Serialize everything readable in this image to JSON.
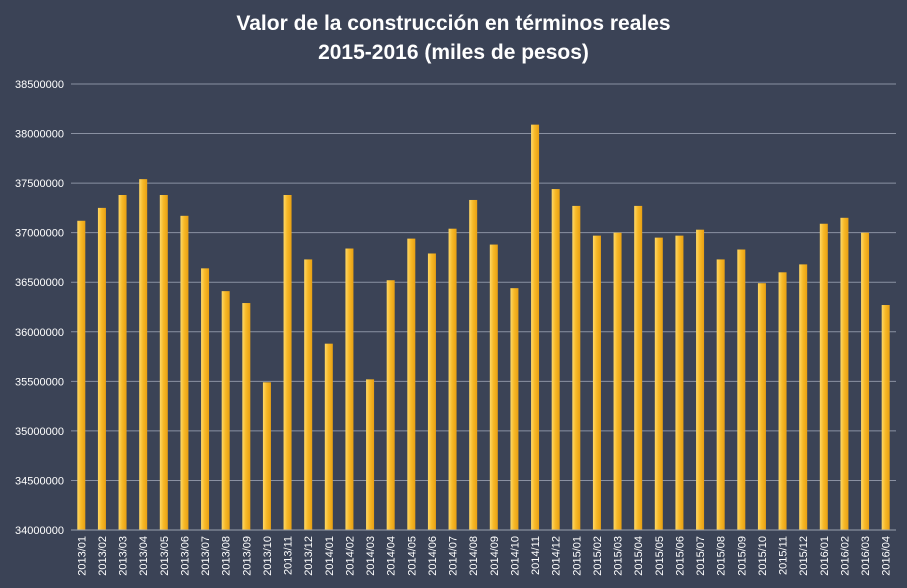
{
  "chart_data": {
    "type": "bar",
    "title": "Valor de la construcción en términos reales",
    "subtitle": "2015-2016 (miles de pesos)",
    "xlabel": "",
    "ylabel": "",
    "ylim": [
      34000000,
      38500000
    ],
    "yticks": [
      "34000000",
      "34500000",
      "35000000",
      "35500000",
      "36000000",
      "36500000",
      "37000000",
      "37500000",
      "38000000",
      "38500000"
    ],
    "grid": true,
    "legend": "none",
    "colors": {
      "background": "#3b4356",
      "bar": "#f7b928",
      "bar_highlight": "#ffd866",
      "grid": "#8a91a2",
      "text": "#ffffff"
    },
    "categories": [
      "2013/01",
      "2013/02",
      "2013/03",
      "2013/04",
      "2013/05",
      "2013/06",
      "2013/07",
      "2013/08",
      "2013/09",
      "2013/10",
      "2013/11",
      "2013/12",
      "2014/01",
      "2014/02",
      "2014/03",
      "2014/04",
      "2014/05",
      "2014/06",
      "2014/07",
      "2014/08",
      "2014/09",
      "2014/10",
      "2014/11",
      "2014/12",
      "2015/01",
      "2015/02",
      "2015/03",
      "2015/04",
      "2015/05",
      "2015/06",
      "2015/07",
      "2015/08",
      "2015/09",
      "2015/10",
      "2015/11",
      "2015/12",
      "2016/01",
      "2016/02",
      "2016/03",
      "2016/04"
    ],
    "values": [
      37120000,
      37250000,
      37380000,
      37540000,
      37380000,
      37170000,
      36640000,
      36410000,
      36290000,
      35490000,
      37380000,
      36730000,
      35880000,
      36840000,
      35520000,
      36520000,
      36940000,
      36790000,
      37040000,
      37330000,
      36880000,
      36440000,
      38090000,
      37440000,
      37270000,
      36970000,
      37000000,
      37270000,
      36950000,
      36970000,
      37030000,
      36730000,
      36830000,
      36490000,
      36600000,
      36680000,
      37090000,
      37150000,
      37000000,
      36270000
    ]
  }
}
